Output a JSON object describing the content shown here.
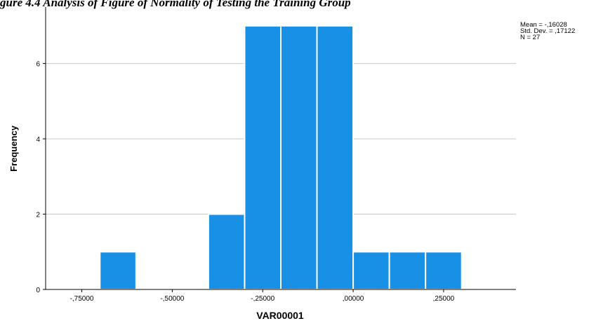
{
  "caption": "gure 4.4 Analysis of Figure of Normality of Testing the Training Group",
  "stats": {
    "mean": "Mean = -,16028",
    "std": "Std. Dev. = ,17122",
    "n": "N = 27"
  },
  "chart_data": {
    "type": "bar",
    "xlabel": "VAR00001",
    "ylabel": "Frequency",
    "xlim": [
      -0.85,
      0.45
    ],
    "ylim": [
      0,
      7.5
    ],
    "bar_width": 0.1,
    "bins_left": [
      -0.7,
      -0.6,
      -0.5,
      -0.4,
      -0.3,
      -0.2,
      -0.1,
      0.0,
      0.1,
      0.2
    ],
    "values": [
      1,
      0,
      0,
      2,
      7,
      7,
      7,
      1,
      1,
      1
    ],
    "x_ticks": [
      {
        "value": -0.75,
        "label": "-,75000"
      },
      {
        "value": -0.5,
        "label": "-,50000"
      },
      {
        "value": -0.25,
        "label": "-,25000"
      },
      {
        "value": 0.0,
        "label": ",00000"
      },
      {
        "value": 0.25,
        "label": ",25000"
      }
    ],
    "y_ticks": [
      {
        "value": 0,
        "label": "0"
      },
      {
        "value": 2,
        "label": "2"
      },
      {
        "value": 4,
        "label": "4"
      },
      {
        "value": 6,
        "label": "6"
      }
    ],
    "bar_color": "#1790e6",
    "grid": true
  }
}
